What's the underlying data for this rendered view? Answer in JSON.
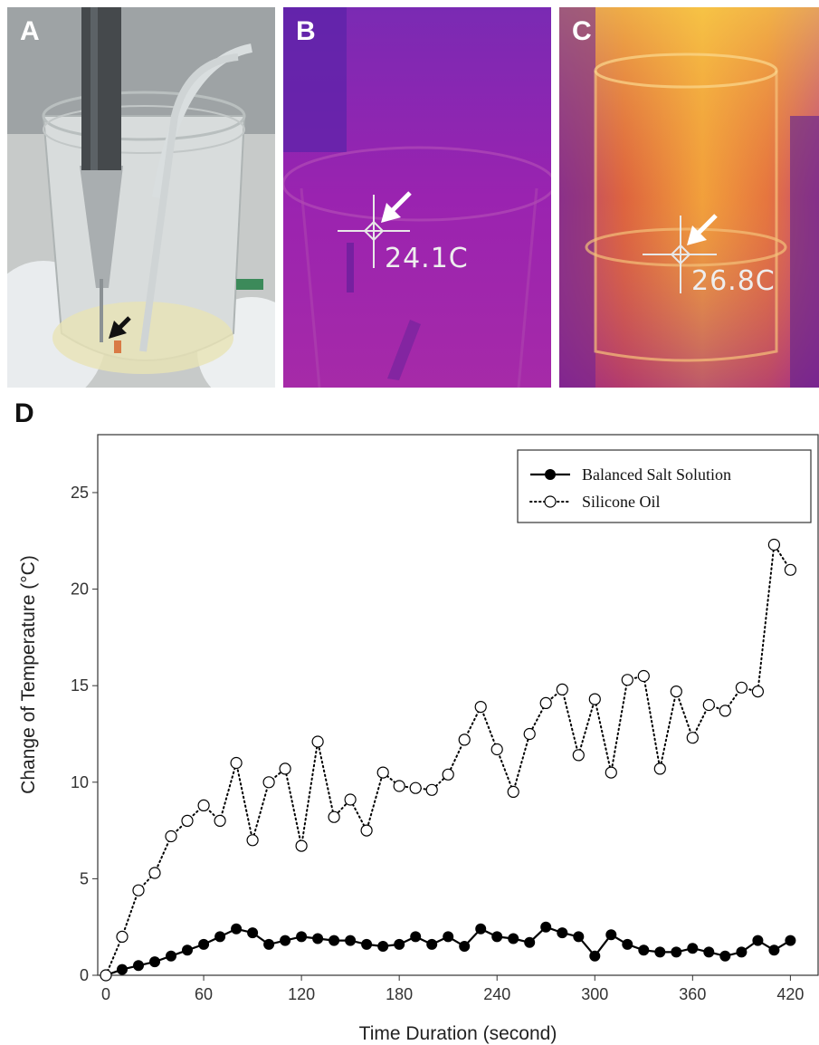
{
  "panels": {
    "a": {
      "letter": "A"
    },
    "b": {
      "letter": "B",
      "readout": "24.1C"
    },
    "c": {
      "letter": "C",
      "readout": "26.8C"
    },
    "d": {
      "letter": "D"
    }
  },
  "chart_data": {
    "type": "line",
    "xlabel": "Time Duration (second)",
    "ylabel": "Change of Temperature (°C)",
    "xlim": [
      -5,
      437
    ],
    "ylim": [
      0,
      28
    ],
    "xticks": [
      0,
      60,
      120,
      180,
      240,
      300,
      360,
      420
    ],
    "yticks": [
      0,
      5,
      10,
      15,
      20,
      25
    ],
    "grid": false,
    "legend_position": "top-right",
    "x": [
      0,
      10,
      20,
      30,
      40,
      50,
      60,
      70,
      80,
      90,
      100,
      110,
      120,
      130,
      140,
      150,
      160,
      170,
      180,
      190,
      200,
      210,
      220,
      230,
      240,
      250,
      260,
      270,
      280,
      290,
      300,
      310,
      320,
      330,
      340,
      350,
      360,
      370,
      380,
      390,
      400,
      410,
      420
    ],
    "series": [
      {
        "name": "Balanced Salt Solution",
        "marker": "filled-circle",
        "line": "solid",
        "color": "#000000",
        "values": [
          0,
          0.3,
          0.5,
          0.7,
          1.0,
          1.3,
          1.6,
          2.0,
          2.4,
          2.2,
          1.6,
          1.8,
          2.0,
          1.9,
          1.8,
          1.8,
          1.6,
          1.5,
          1.6,
          2.0,
          1.6,
          2.0,
          1.5,
          2.4,
          2.0,
          1.9,
          1.7,
          2.5,
          2.2,
          2.0,
          1.0,
          2.1,
          1.6,
          1.3,
          1.2,
          1.2,
          1.4,
          1.2,
          1.0,
          1.2,
          1.8,
          1.3,
          1.8
        ]
      },
      {
        "name": "Silicone Oil",
        "marker": "open-circle",
        "line": "dotted",
        "color": "#000000",
        "values": [
          0,
          2.0,
          4.4,
          5.3,
          7.2,
          8.0,
          8.8,
          8.0,
          11.0,
          7.0,
          10.0,
          10.7,
          6.7,
          12.1,
          8.2,
          9.1,
          7.5,
          10.5,
          9.8,
          9.7,
          9.6,
          10.4,
          12.2,
          13.9,
          11.7,
          9.5,
          12.5,
          14.1,
          14.8,
          11.4,
          14.3,
          10.5,
          15.3,
          15.5,
          10.7,
          14.7,
          12.3,
          14.0,
          13.7,
          14.9,
          14.7,
          22.3,
          21.0
        ]
      }
    ]
  }
}
